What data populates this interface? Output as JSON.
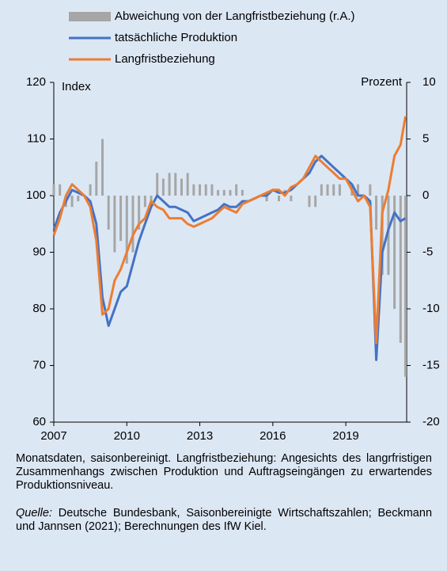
{
  "chart_data": {
    "type": "line",
    "y_label": "Index",
    "y2_label": "Prozent",
    "x": [
      2007.0,
      2007.25,
      2007.5,
      2007.75,
      2008.0,
      2008.25,
      2008.5,
      2008.75,
      2009.0,
      2009.25,
      2009.5,
      2009.75,
      2010.0,
      2010.25,
      2010.5,
      2010.75,
      2011.0,
      2011.25,
      2011.5,
      2011.75,
      2012.0,
      2012.25,
      2012.5,
      2012.75,
      2013.0,
      2013.25,
      2013.5,
      2013.75,
      2014.0,
      2014.25,
      2014.5,
      2014.75,
      2015.0,
      2015.25,
      2015.5,
      2015.75,
      2016.0,
      2016.25,
      2016.5,
      2016.75,
      2017.0,
      2017.25,
      2017.5,
      2017.75,
      2018.0,
      2018.25,
      2018.5,
      2018.75,
      2019.0,
      2019.25,
      2019.5,
      2019.75,
      2020.0,
      2020.25,
      2020.5,
      2020.75,
      2021.0,
      2021.25,
      2021.45
    ],
    "series": [
      {
        "name": "Abweichung von der Langfristbeziehung (r.A.)",
        "kind": "bar",
        "axis": "y2",
        "color": "#a6a6a6",
        "values": [
          1,
          1,
          -1,
          -1,
          -0.5,
          0,
          1,
          3,
          5,
          -3,
          -5,
          -4,
          -6,
          -5,
          -3,
          -1,
          -1,
          2,
          1.5,
          2,
          2,
          1.5,
          2,
          1,
          1,
          1,
          1,
          0.5,
          0.5,
          0.5,
          1,
          0.5,
          0,
          0,
          0,
          -0.5,
          0,
          -0.5,
          0.5,
          -0.5,
          0,
          0,
          -1,
          -1,
          1,
          1,
          1,
          1,
          0,
          1,
          1,
          0,
          1,
          -3,
          -7,
          -7,
          -10,
          -13,
          -16
        ]
      },
      {
        "name": "tatsächliche Produktion",
        "kind": "line",
        "color": "#4472c4",
        "values": [
          94,
          97,
          99,
          101,
          100.5,
          100,
          99,
          95,
          82,
          77,
          80,
          83,
          84,
          88,
          92,
          95,
          98,
          100,
          99,
          98,
          98,
          97.5,
          97,
          95.5,
          96,
          96.5,
          97,
          97.5,
          98.5,
          98,
          98,
          99,
          99,
          99.5,
          100,
          100,
          101,
          100.5,
          100.5,
          101,
          102,
          103,
          104,
          106,
          107,
          106,
          105,
          104,
          103,
          102,
          100,
          100,
          99,
          71,
          90,
          94,
          97,
          95.5,
          96
        ]
      },
      {
        "name": "Langfristbeziehung",
        "kind": "line",
        "color": "#ed7d31",
        "values": [
          93,
          96,
          100,
          102,
          101,
          100,
          98,
          92,
          79,
          80,
          85,
          87,
          90,
          93,
          95,
          96,
          99,
          98,
          97.5,
          96,
          96,
          96,
          95,
          94.5,
          95,
          95.5,
          96,
          97,
          98,
          97.5,
          97,
          98.5,
          99,
          99.5,
          100,
          100.5,
          101,
          101,
          100,
          101.5,
          102,
          103,
          105,
          107,
          106,
          105,
          104,
          103,
          103,
          101,
          99,
          100,
          98,
          74,
          97,
          101,
          107,
          109,
          114
        ]
      }
    ],
    "xlim": [
      2007,
      2021.5
    ],
    "xticks": [
      2007,
      2010,
      2013,
      2016,
      2019
    ],
    "ylim": [
      60,
      120
    ],
    "yticks": [
      60,
      70,
      80,
      90,
      100,
      110,
      120
    ],
    "y2lim": [
      -20,
      10
    ],
    "y2ticks": [
      -20,
      -15,
      -10,
      -5,
      0,
      5,
      10
    ]
  },
  "notes": "Monatsdaten, saisonbereinigt. Langfristbeziehung: Angesichts des langrfristigen Zusammenhangs zwischen Produktion und Auftragseingängen zu erwartendes Produktionsniveau.",
  "source_label": "Quelle:",
  "source_text": "Deutsche Bundesbank, Saisonbereinigte Wirtschaftszahlen; Beckmann und Jannsen (2021); Berechnungen des IfW Kiel."
}
